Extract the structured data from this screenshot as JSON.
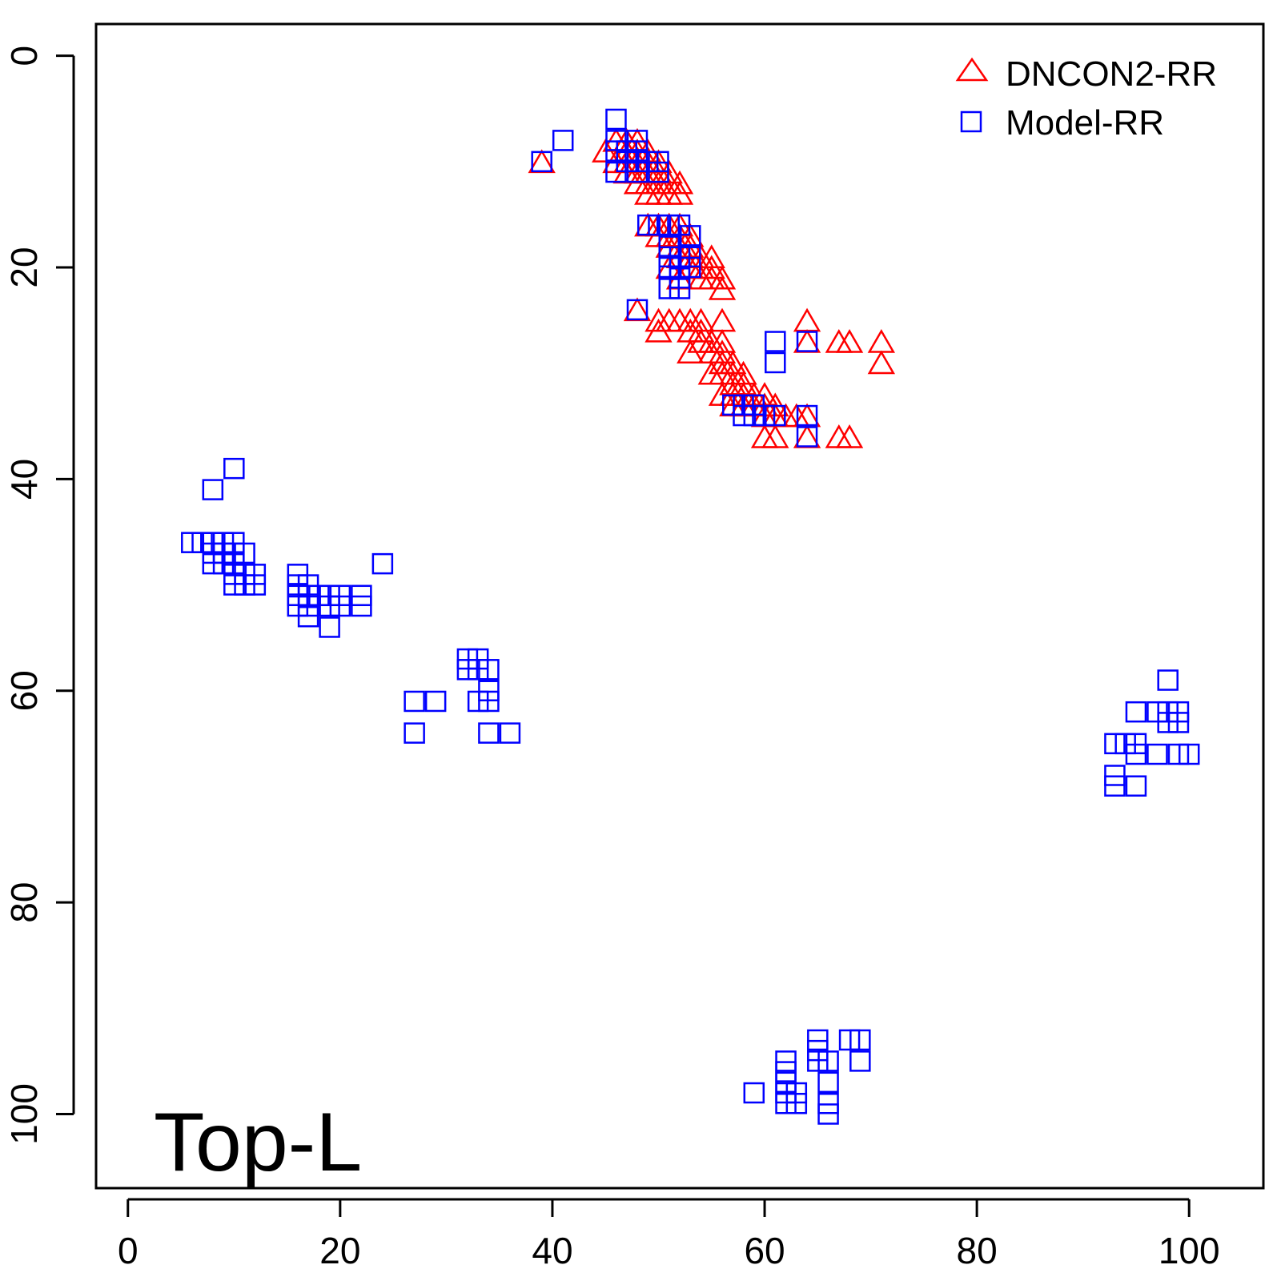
{
  "chart_data": {
    "type": "scatter",
    "panel_label": "Top-L",
    "xlim": [
      -3,
      107
    ],
    "ylim": [
      107,
      -3
    ],
    "x_ticks": [
      "0",
      "20",
      "40",
      "60",
      "80",
      "100"
    ],
    "y_ticks": [
      "0",
      "20",
      "40",
      "60",
      "80",
      "100"
    ],
    "grid": false,
    "legend_position": "top-right",
    "series": [
      {
        "name": "DNCON2-RR",
        "marker": "triangle",
        "color": "#ff0000",
        "points": [
          [
            39,
            10
          ],
          [
            45,
            9
          ],
          [
            46,
            8
          ],
          [
            46,
            10
          ],
          [
            47,
            8
          ],
          [
            47,
            9
          ],
          [
            47,
            10
          ],
          [
            47,
            11
          ],
          [
            48,
            8
          ],
          [
            48,
            9
          ],
          [
            48,
            10
          ],
          [
            48,
            11
          ],
          [
            48,
            12
          ],
          [
            49,
            9
          ],
          [
            49,
            10
          ],
          [
            49,
            11
          ],
          [
            49,
            12
          ],
          [
            49,
            13
          ],
          [
            50,
            10
          ],
          [
            50,
            11
          ],
          [
            50,
            12
          ],
          [
            50,
            13
          ],
          [
            51,
            11
          ],
          [
            51,
            12
          ],
          [
            51,
            13
          ],
          [
            52,
            12
          ],
          [
            52,
            13
          ],
          [
            49,
            16
          ],
          [
            50,
            16
          ],
          [
            50,
            17
          ],
          [
            51,
            16
          ],
          [
            51,
            17
          ],
          [
            51,
            18
          ],
          [
            52,
            16
          ],
          [
            52,
            17
          ],
          [
            52,
            18
          ],
          [
            52,
            19
          ],
          [
            53,
            17
          ],
          [
            53,
            18
          ],
          [
            53,
            19
          ],
          [
            53,
            20
          ],
          [
            54,
            19
          ],
          [
            54,
            20
          ],
          [
            54,
            21
          ],
          [
            55,
            19
          ],
          [
            55,
            20
          ],
          [
            55,
            21
          ],
          [
            56,
            21
          ],
          [
            56,
            22
          ],
          [
            51,
            20
          ],
          [
            52,
            21
          ],
          [
            48,
            24
          ],
          [
            50,
            25
          ],
          [
            50,
            26
          ],
          [
            51,
            25
          ],
          [
            52,
            25
          ],
          [
            53,
            25
          ],
          [
            53,
            26
          ],
          [
            54,
            25
          ],
          [
            54,
            26
          ],
          [
            53,
            28
          ],
          [
            54,
            27
          ],
          [
            55,
            27
          ],
          [
            55,
            28
          ],
          [
            56,
            25
          ],
          [
            56,
            27
          ],
          [
            56,
            28
          ],
          [
            55,
            30
          ],
          [
            56,
            29
          ],
          [
            56,
            30
          ],
          [
            57,
            29
          ],
          [
            57,
            30
          ],
          [
            57,
            31
          ],
          [
            56,
            32
          ],
          [
            57,
            32
          ],
          [
            58,
            30
          ],
          [
            58,
            31
          ],
          [
            58,
            32
          ],
          [
            57,
            33
          ],
          [
            58,
            33
          ],
          [
            59,
            32
          ],
          [
            59,
            33
          ],
          [
            60,
            32
          ],
          [
            60,
            33
          ],
          [
            60,
            34
          ],
          [
            61,
            33
          ],
          [
            61,
            34
          ],
          [
            62,
            34
          ],
          [
            63,
            34
          ],
          [
            60,
            36
          ],
          [
            61,
            36
          ],
          [
            64,
            34
          ],
          [
            64,
            36
          ],
          [
            67,
            36
          ],
          [
            68,
            36
          ],
          [
            64,
            25
          ],
          [
            64,
            27
          ],
          [
            67,
            27
          ],
          [
            68,
            27
          ],
          [
            71,
            27
          ],
          [
            71,
            29
          ]
        ]
      },
      {
        "name": "Model-RR",
        "marker": "square",
        "color": "#0000ff",
        "points": [
          [
            39,
            10
          ],
          [
            41,
            8
          ],
          [
            46,
            6
          ],
          [
            46,
            8
          ],
          [
            46,
            9
          ],
          [
            46,
            11
          ],
          [
            47,
            9
          ],
          [
            47,
            10
          ],
          [
            48,
            8
          ],
          [
            48,
            9
          ],
          [
            48,
            11
          ],
          [
            49,
            10
          ],
          [
            50,
            10
          ],
          [
            50,
            11
          ],
          [
            49,
            16
          ],
          [
            50,
            16
          ],
          [
            51,
            16
          ],
          [
            52,
            16
          ],
          [
            53,
            17
          ],
          [
            51,
            18
          ],
          [
            51,
            19
          ],
          [
            51,
            20
          ],
          [
            52,
            19
          ],
          [
            52,
            20
          ],
          [
            52,
            21
          ],
          [
            53,
            19
          ],
          [
            53,
            20
          ],
          [
            51,
            22
          ],
          [
            52,
            22
          ],
          [
            48,
            24
          ],
          [
            57,
            33
          ],
          [
            58,
            33
          ],
          [
            58,
            34
          ],
          [
            59,
            33
          ],
          [
            59,
            34
          ],
          [
            60,
            34
          ],
          [
            61,
            34
          ],
          [
            61,
            27
          ],
          [
            61,
            29
          ],
          [
            64,
            27
          ],
          [
            64,
            34
          ],
          [
            64,
            36
          ],
          [
            10,
            39
          ],
          [
            8,
            41
          ],
          [
            6,
            46
          ],
          [
            7,
            46
          ],
          [
            8,
            46
          ],
          [
            9,
            46
          ],
          [
            10,
            46
          ],
          [
            8,
            47
          ],
          [
            9,
            47
          ],
          [
            10,
            47
          ],
          [
            11,
            47
          ],
          [
            8,
            48
          ],
          [
            9,
            48
          ],
          [
            10,
            48
          ],
          [
            10,
            49
          ],
          [
            11,
            49
          ],
          [
            12,
            49
          ],
          [
            10,
            50
          ],
          [
            11,
            50
          ],
          [
            12,
            50
          ],
          [
            24,
            48
          ],
          [
            16,
            49
          ],
          [
            16,
            50
          ],
          [
            17,
            50
          ],
          [
            16,
            51
          ],
          [
            17,
            51
          ],
          [
            18,
            51
          ],
          [
            16,
            52
          ],
          [
            17,
            52
          ],
          [
            19,
            51
          ],
          [
            20,
            51
          ],
          [
            22,
            51
          ],
          [
            19,
            52
          ],
          [
            20,
            52
          ],
          [
            22,
            52
          ],
          [
            17,
            53
          ],
          [
            19,
            54
          ],
          [
            32,
            57
          ],
          [
            33,
            57
          ],
          [
            32,
            58
          ],
          [
            33,
            58
          ],
          [
            34,
            58
          ],
          [
            34,
            60
          ],
          [
            33,
            61
          ],
          [
            34,
            61
          ],
          [
            27,
            61
          ],
          [
            29,
            61
          ],
          [
            27,
            64
          ],
          [
            34,
            64
          ],
          [
            36,
            64
          ],
          [
            98,
            59
          ],
          [
            95,
            62
          ],
          [
            97,
            62
          ],
          [
            98,
            62
          ],
          [
            99,
            62
          ],
          [
            98,
            63
          ],
          [
            99,
            63
          ],
          [
            93,
            65
          ],
          [
            94,
            65
          ],
          [
            95,
            65
          ],
          [
            95,
            66
          ],
          [
            97,
            66
          ],
          [
            99,
            66
          ],
          [
            100,
            66
          ],
          [
            93,
            68
          ],
          [
            93,
            69
          ],
          [
            95,
            69
          ],
          [
            65,
            93
          ],
          [
            68,
            93
          ],
          [
            69,
            93
          ],
          [
            65,
            94
          ],
          [
            65,
            95
          ],
          [
            66,
            95
          ],
          [
            69,
            95
          ],
          [
            62,
            95
          ],
          [
            62,
            96
          ],
          [
            62,
            97
          ],
          [
            66,
            97
          ],
          [
            59,
            98
          ],
          [
            62,
            98
          ],
          [
            63,
            98
          ],
          [
            62,
            99
          ],
          [
            63,
            99
          ],
          [
            66,
            99
          ],
          [
            66,
            100
          ]
        ]
      }
    ]
  }
}
